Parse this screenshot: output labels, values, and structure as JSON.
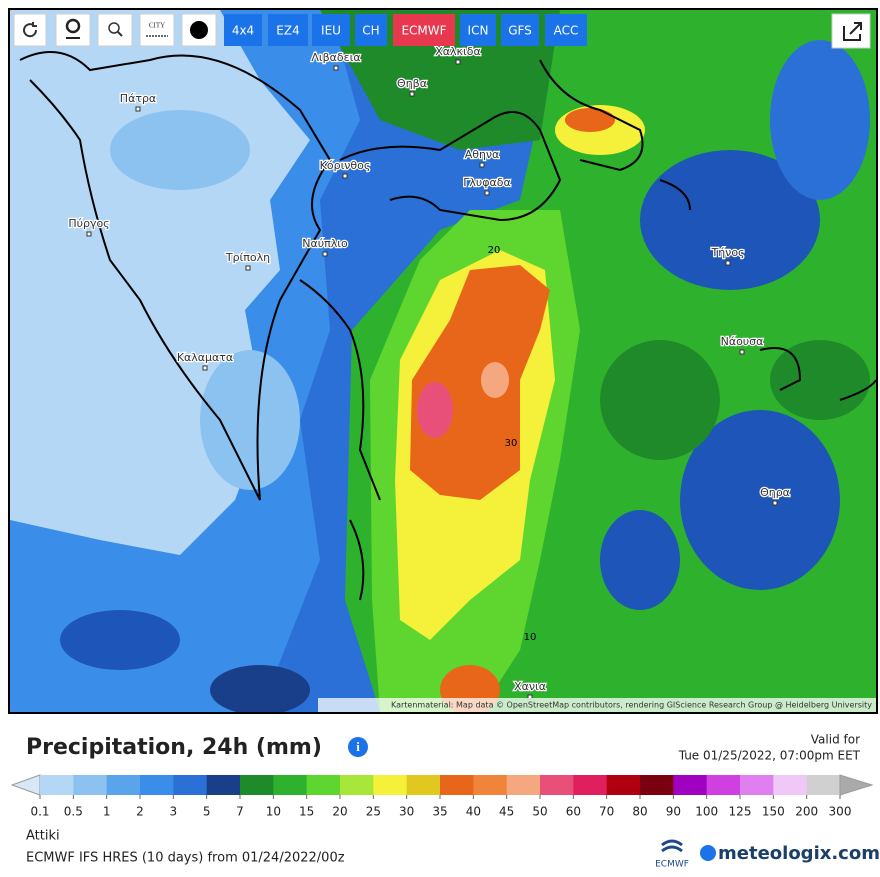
{
  "toolbar": {
    "city_icon": "CITY",
    "buttons": [
      "4x4",
      "EZ4",
      "IEU",
      "CH",
      "ECMWF",
      "ICN",
      "GFS",
      "ACC"
    ]
  },
  "map": {
    "places": [
      "Λιβαδεια",
      "Χαλκιδα",
      "Θηβα",
      "Πάτρα",
      "Αθηνα",
      "Κόρινθος",
      "Γλυφαδα",
      "Πύργος",
      "Ναύπλιο",
      "Τρίπολη",
      "Τήνος",
      "Καλαματα",
      "Νάουσα",
      "Θηρα",
      "Χανια"
    ],
    "contour_labels": [
      "20",
      "30",
      "10"
    ],
    "attribution": "Kartenmaterial: Map data © OpenStreetMap contributors, rendering GIScience Research Group @ Heidelberg University"
  },
  "legend": {
    "title": "Precipitation, 24h (mm)",
    "valid_label": "Valid for",
    "valid_time": "Tue 01/25/2022, 07:00pm EET",
    "labels": [
      "0.1",
      "0.5",
      "1",
      "2",
      "3",
      "5",
      "7",
      "10",
      "15",
      "20",
      "25",
      "30",
      "35",
      "40",
      "45",
      "50",
      "60",
      "70",
      "80",
      "90",
      "100",
      "125",
      "150",
      "200",
      "300"
    ],
    "colors": [
      "#b4d7f5",
      "#8cc2f0",
      "#5aa4ec",
      "#3a8de8",
      "#2a70d6",
      "#1a3f8a",
      "#1f8a2a",
      "#2eb22e",
      "#5ed62f",
      "#a8e63a",
      "#f5f03a",
      "#e0c820",
      "#e8661a",
      "#f0843a",
      "#f5a880",
      "#e8507a",
      "#e01f5e",
      "#b00010",
      "#7a0010",
      "#a000c0",
      "#d040e0",
      "#e080f0",
      "#f0c8f8",
      "#d0d0d0"
    ]
  },
  "footer": {
    "region": "Attiki",
    "model": "ECMWF IFS HRES (10 days) from 01/24/2022/00z",
    "ecmwf_logo": "ECMWF",
    "brand": "meteologix.com"
  }
}
